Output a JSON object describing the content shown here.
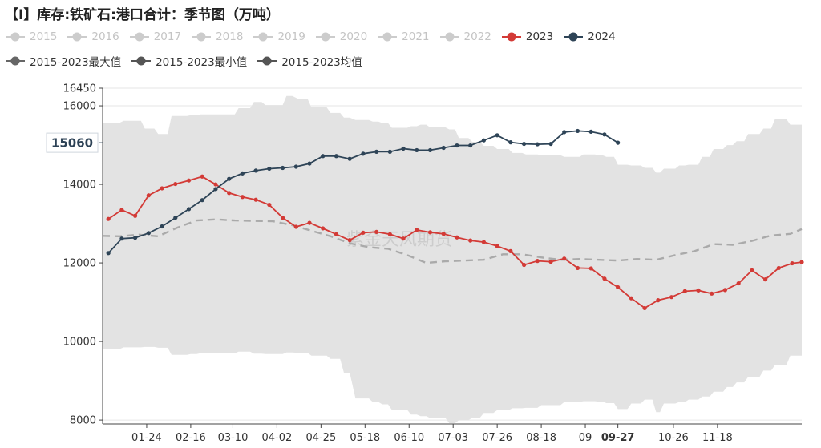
{
  "title": "【I】库存:铁矿石:港口合计：季节图（万吨）",
  "watermark": "紫金天风期货",
  "legend": [
    {
      "label": "2015",
      "color": "#cccccc",
      "text_color": "#c4c4c4",
      "icon": "line-dot-icon"
    },
    {
      "label": "2016",
      "color": "#cccccc",
      "text_color": "#c4c4c4",
      "icon": "line-dot-icon"
    },
    {
      "label": "2017",
      "color": "#cccccc",
      "text_color": "#c4c4c4",
      "icon": "line-dot-icon"
    },
    {
      "label": "2018",
      "color": "#cccccc",
      "text_color": "#c4c4c4",
      "icon": "line-dot-icon"
    },
    {
      "label": "2019",
      "color": "#cccccc",
      "text_color": "#c4c4c4",
      "icon": "line-dot-icon"
    },
    {
      "label": "2020",
      "color": "#cccccc",
      "text_color": "#c4c4c4",
      "icon": "line-dot-icon"
    },
    {
      "label": "2021",
      "color": "#cccccc",
      "text_color": "#c4c4c4",
      "icon": "line-dot-icon"
    },
    {
      "label": "2022",
      "color": "#cccccc",
      "text_color": "#c4c4c4",
      "icon": "line-dot-icon"
    },
    {
      "label": "2023",
      "color": "#d33a36",
      "text_color": "#333333",
      "icon": "line-dot-icon"
    },
    {
      "label": "2024",
      "color": "#2e4457",
      "text_color": "#333333",
      "icon": "line-dot-icon"
    },
    {
      "label": "2015-2023最大值",
      "color": "#666666",
      "text_color": "#333333",
      "icon": "line-dot-icon"
    },
    {
      "label": "2015-2023最小值",
      "color": "#555555",
      "text_color": "#333333",
      "icon": "line-dot-icon"
    },
    {
      "label": "2015-2023均值",
      "color": "#555555",
      "text_color": "#333333",
      "icon": "line-dot-icon"
    }
  ],
  "chart_data": {
    "type": "line",
    "title": "【I】库存:铁矿石:港口合计：季节图（万吨）",
    "ylim": [
      7900,
      16450
    ],
    "yticks": [
      8000,
      10000,
      12000,
      14000,
      16000,
      16450
    ],
    "xlim": [
      1,
      366
    ],
    "xticks": [
      {
        "label": "01-24",
        "day": 24
      },
      {
        "label": "02-16",
        "day": 47
      },
      {
        "label": "03-10",
        "day": 69
      },
      {
        "label": "04-02",
        "day": 92
      },
      {
        "label": "04-25",
        "day": 115
      },
      {
        "label": "05-18",
        "day": 138
      },
      {
        "label": "06-10",
        "day": 161
      },
      {
        "label": "07-03",
        "day": 184
      },
      {
        "label": "07-26",
        "day": 207
      },
      {
        "label": "08-18",
        "day": 230
      },
      {
        "label": "09",
        "day": 253
      },
      {
        "label": "09-27",
        "day": 270,
        "bold": true
      },
      {
        "label": "10-26",
        "day": 299
      },
      {
        "label": "11-18",
        "day": 322
      }
    ],
    "current_value": 15060,
    "current_value_label": "15060",
    "colors": {
      "band": "#e3e3e3",
      "mean": "#aaaaaa",
      "s2023": "#d33a36",
      "s2024": "#2e4457"
    },
    "band": {
      "name": "2015-2023最大值 / 2015-2023最小值",
      "x": [
        1,
        10,
        12,
        21,
        23,
        28,
        30,
        35,
        37,
        45,
        47,
        50,
        52,
        70,
        72,
        78,
        80,
        84,
        86,
        95,
        97,
        100,
        103,
        108,
        110,
        118,
        120,
        125,
        127,
        130,
        133,
        140,
        142,
        145,
        147,
        150,
        152,
        160,
        162,
        165,
        167,
        170,
        172,
        180,
        182,
        185,
        187,
        192,
        194,
        198,
        200,
        205,
        207,
        213,
        215,
        220,
        222,
        228,
        230,
        240,
        242,
        250,
        252,
        258,
        260,
        262,
        264,
        268,
        270,
        275,
        277,
        282,
        284,
        288,
        290,
        292,
        294,
        300,
        302,
        305,
        307,
        312,
        314,
        318,
        320,
        325,
        327,
        330,
        332,
        336,
        338,
        344,
        346,
        350,
        352,
        358,
        360,
        366
      ],
      "max": [
        15570,
        15570,
        15620,
        15620,
        15420,
        15420,
        15280,
        15280,
        15740,
        15740,
        15760,
        15760,
        15780,
        15780,
        15940,
        15940,
        16100,
        16100,
        16020,
        16020,
        16250,
        16250,
        16180,
        16180,
        15960,
        15960,
        15820,
        15820,
        15700,
        15700,
        15640,
        15640,
        15600,
        15600,
        15560,
        15560,
        15440,
        15440,
        15480,
        15480,
        15520,
        15520,
        15450,
        15450,
        15400,
        15400,
        15180,
        15180,
        15080,
        15080,
        14980,
        14980,
        14900,
        14900,
        14800,
        14800,
        14760,
        14760,
        14740,
        14740,
        14700,
        14700,
        14760,
        14760,
        14740,
        14740,
        14700,
        14700,
        14500,
        14500,
        14480,
        14480,
        14420,
        14420,
        14300,
        14300,
        14400,
        14400,
        14480,
        14480,
        14500,
        14500,
        14700,
        14700,
        14900,
        14900,
        15000,
        15000,
        15100,
        15100,
        15280,
        15280,
        15420,
        15420,
        15660,
        15660,
        15520,
        15520
      ],
      "min": [
        9810,
        9810,
        9850,
        9850,
        9860,
        9860,
        9840,
        9840,
        9660,
        9660,
        9680,
        9680,
        9700,
        9700,
        9740,
        9740,
        9690,
        9690,
        9680,
        9680,
        9720,
        9720,
        9710,
        9710,
        9640,
        9640,
        9560,
        9560,
        9200,
        9200,
        8550,
        8550,
        8460,
        8460,
        8400,
        8400,
        8260,
        8260,
        8140,
        8140,
        8100,
        8100,
        8050,
        8050,
        7920,
        7920,
        8000,
        8000,
        8060,
        8060,
        8180,
        8180,
        8250,
        8250,
        8300,
        8300,
        8310,
        8310,
        8380,
        8380,
        8460,
        8460,
        8480,
        8480,
        8470,
        8470,
        8430,
        8430,
        8280,
        8280,
        8420,
        8420,
        8520,
        8520,
        8200,
        8200,
        8420,
        8420,
        8460,
        8460,
        8520,
        8520,
        8600,
        8600,
        8720,
        8720,
        8840,
        8840,
        8960,
        8960,
        9100,
        9100,
        9260,
        9260,
        9400,
        9400,
        9640,
        9640
      ]
    },
    "series": [
      {
        "name": "2015-2023均值",
        "style": "dashed",
        "x": [
          1,
          10,
          20,
          30,
          40,
          50,
          60,
          70,
          80,
          90,
          100,
          110,
          120,
          130,
          140,
          150,
          160,
          170,
          180,
          190,
          200,
          210,
          220,
          230,
          240,
          250,
          260,
          270,
          280,
          290,
          300,
          310,
          320,
          330,
          340,
          350,
          360,
          366
        ],
        "y": [
          12690,
          12680,
          12720,
          12680,
          12900,
          13080,
          13110,
          13080,
          13070,
          13060,
          12960,
          12820,
          12680,
          12500,
          12400,
          12360,
          12200,
          12000,
          12040,
          12060,
          12080,
          12220,
          12220,
          12140,
          12080,
          12100,
          12080,
          12060,
          12100,
          12080,
          12200,
          12300,
          12480,
          12460,
          12560,
          12700,
          12740,
          12860
        ]
      },
      {
        "name": "2023",
        "x": [
          4,
          11,
          18,
          25,
          32,
          39,
          46,
          53,
          60,
          67,
          74,
          81,
          88,
          95,
          102,
          109,
          116,
          123,
          130,
          137,
          144,
          151,
          158,
          165,
          172,
          179,
          186,
          193,
          200,
          207,
          214,
          221,
          228,
          235,
          242,
          249,
          256,
          263,
          270,
          277,
          284,
          291,
          298,
          305,
          312,
          319,
          326,
          333,
          340,
          347,
          354,
          361,
          366
        ],
        "y": [
          13120,
          13350,
          13200,
          13720,
          13900,
          14010,
          14100,
          14200,
          14000,
          13780,
          13680,
          13610,
          13480,
          13150,
          12920,
          13020,
          12880,
          12730,
          12580,
          12770,
          12790,
          12730,
          12620,
          12840,
          12780,
          12740,
          12650,
          12570,
          12530,
          12430,
          12300,
          11950,
          12050,
          12030,
          12110,
          11870,
          11860,
          11600,
          11380,
          11100,
          10850,
          11050,
          11130,
          11280,
          11300,
          11220,
          11310,
          11480,
          11810,
          11580,
          11870,
          11990,
          12020
        ]
      },
      {
        "name": "2024",
        "x": [
          4,
          11,
          18,
          25,
          32,
          39,
          46,
          53,
          60,
          67,
          74,
          81,
          88,
          95,
          102,
          109,
          116,
          123,
          130,
          137,
          144,
          151,
          158,
          165,
          172,
          179,
          186,
          193,
          200,
          207,
          214,
          221,
          228,
          235,
          242,
          249,
          256,
          263,
          270
        ],
        "y": [
          12250,
          12620,
          12640,
          12760,
          12930,
          13150,
          13370,
          13600,
          13880,
          14140,
          14280,
          14350,
          14400,
          14420,
          14450,
          14530,
          14720,
          14720,
          14650,
          14780,
          14830,
          14830,
          14910,
          14870,
          14870,
          14930,
          14990,
          14990,
          15120,
          15250,
          15070,
          15030,
          15020,
          15030,
          15330,
          15360,
          15340,
          15270,
          15060
        ]
      }
    ]
  }
}
